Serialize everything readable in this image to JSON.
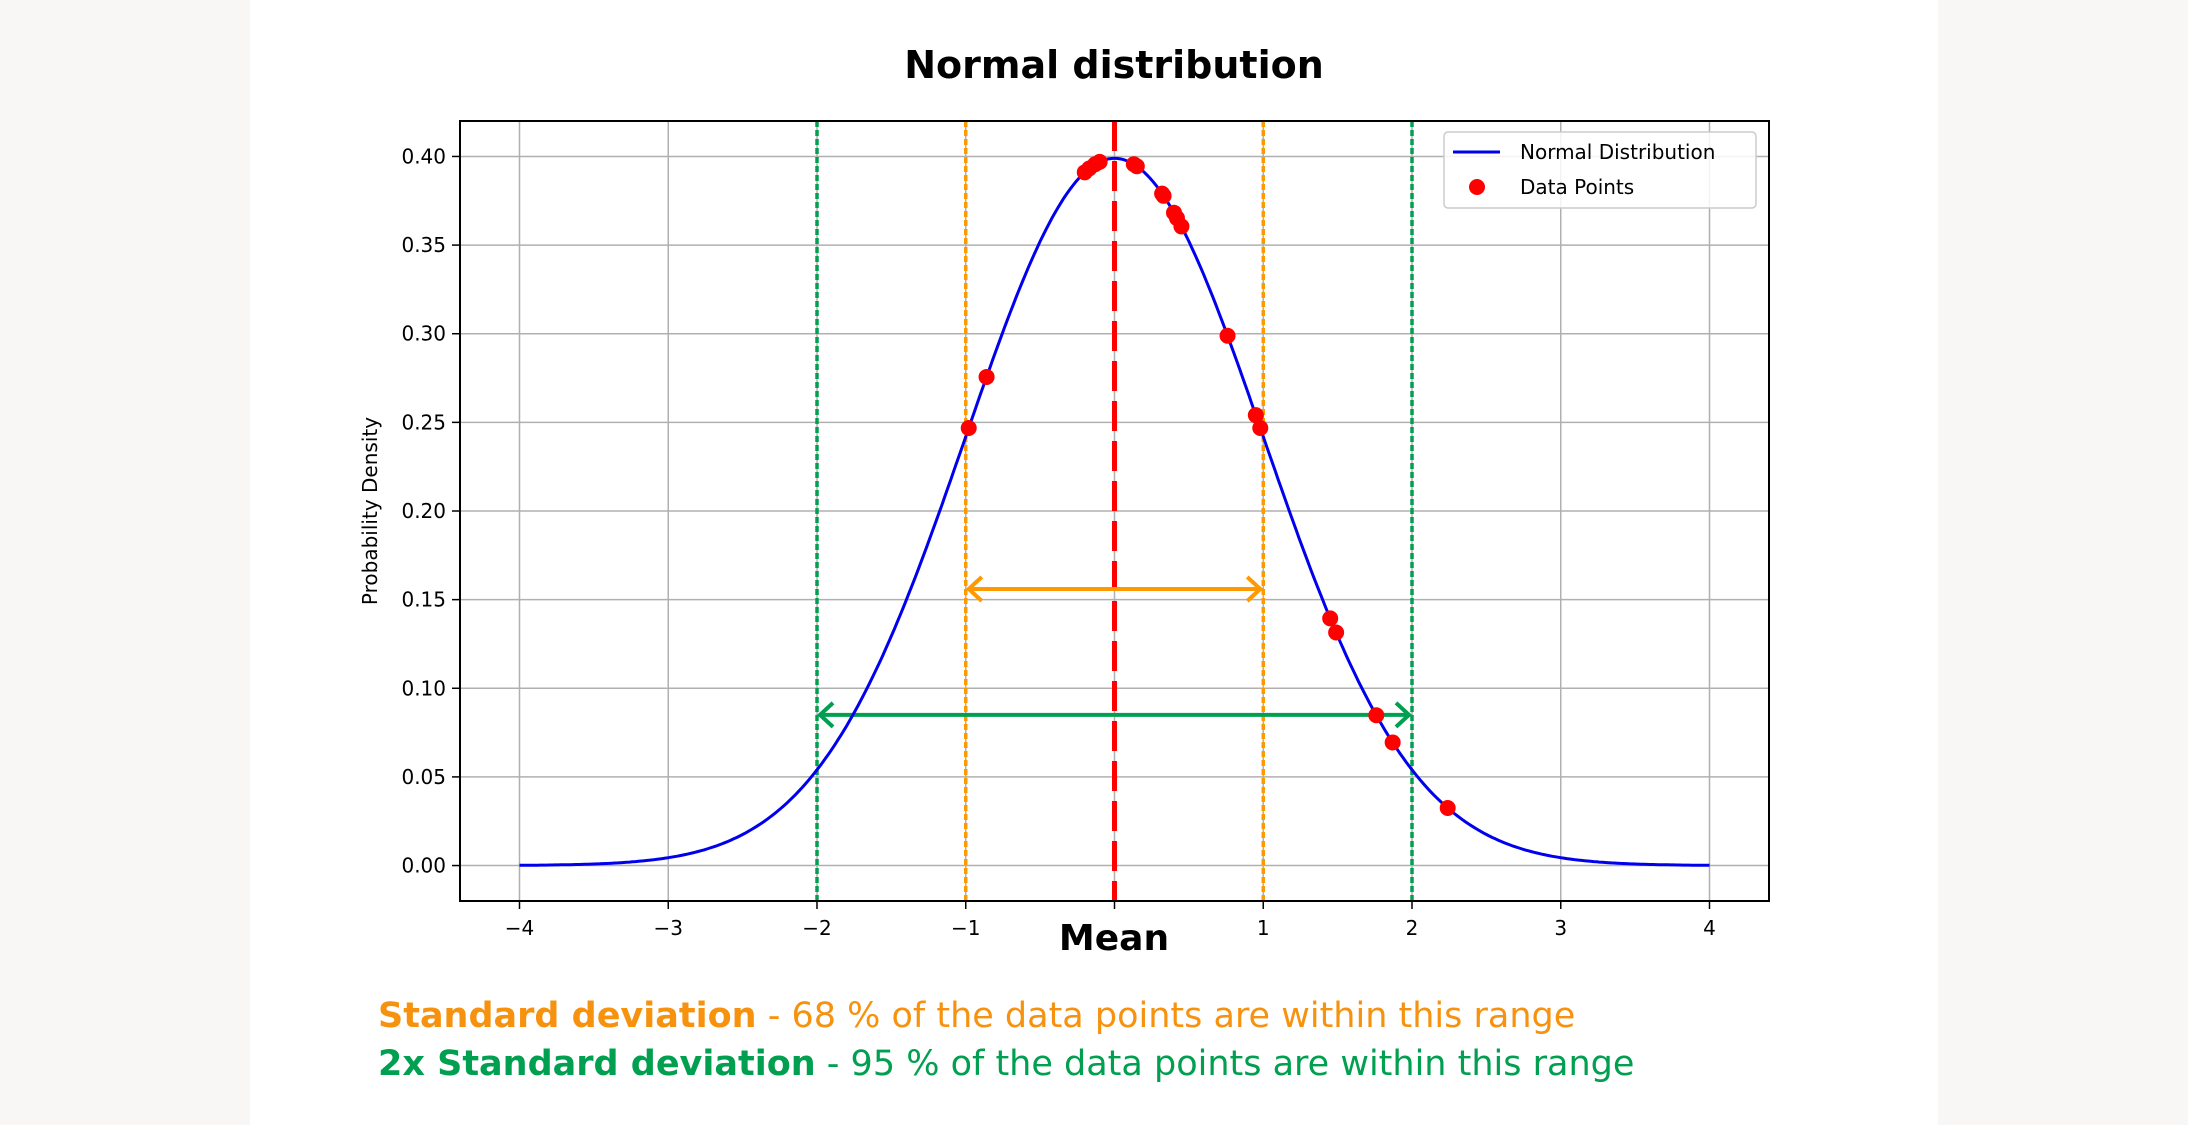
{
  "chart_data": {
    "type": "line",
    "title": "Normal distribution",
    "xlabel": "Mean",
    "ylabel": "Probability Density",
    "xlim": [
      -4.4,
      4.4
    ],
    "ylim": [
      -0.02,
      0.42
    ],
    "xticks": [
      -4,
      -3,
      -2,
      -1,
      0,
      1,
      2,
      3,
      4
    ],
    "xtick_labels": [
      "−4",
      "−3",
      "−2",
      "−1",
      "",
      "1",
      "2",
      "3",
      "4"
    ],
    "yticks": [
      0,
      0.05,
      0.1,
      0.15,
      0.2,
      0.25,
      0.3,
      0.35,
      0.4
    ],
    "ytick_labels": [
      "0.00",
      "0.05",
      "0.10",
      "0.15",
      "0.20",
      "0.25",
      "0.30",
      "0.35",
      "0.40"
    ],
    "grid": true,
    "legend_placement": "top-right",
    "curve": {
      "name": "Normal Distribution",
      "mean": 0,
      "std": 1,
      "x_range": [
        -4,
        4
      ],
      "color": "#0000ee"
    },
    "points": {
      "name": "Data Points",
      "color": "#ff0000",
      "x": [
        -0.98,
        -0.86,
        -0.2,
        -0.17,
        -0.13,
        -0.1,
        0.13,
        0.15,
        0.32,
        0.33,
        0.4,
        0.42,
        0.45,
        0.76,
        0.95,
        0.98,
        1.45,
        1.49,
        1.76,
        1.87,
        2.24
      ]
    },
    "mean_line": {
      "x": 0,
      "color": "#ff0000"
    },
    "std_lines": {
      "x": [
        -1,
        1
      ],
      "color": "#ff9900"
    },
    "std2_lines": {
      "x": [
        -2,
        2
      ],
      "color": "#00a050"
    },
    "std_arrow": {
      "x": [
        -1,
        1
      ],
      "y": 0.156
    },
    "std2_arrow": {
      "x": [
        -2,
        2
      ],
      "y": 0.085
    }
  },
  "captions": {
    "std_bold": "Standard deviation",
    "std_rest": " - 68 % of the data points are within this range",
    "std2_bold": "2x Standard deviation",
    "std2_rest": " - 95 % of the data points are within this range",
    "orange": "#f7920f",
    "green": "#00a050"
  }
}
